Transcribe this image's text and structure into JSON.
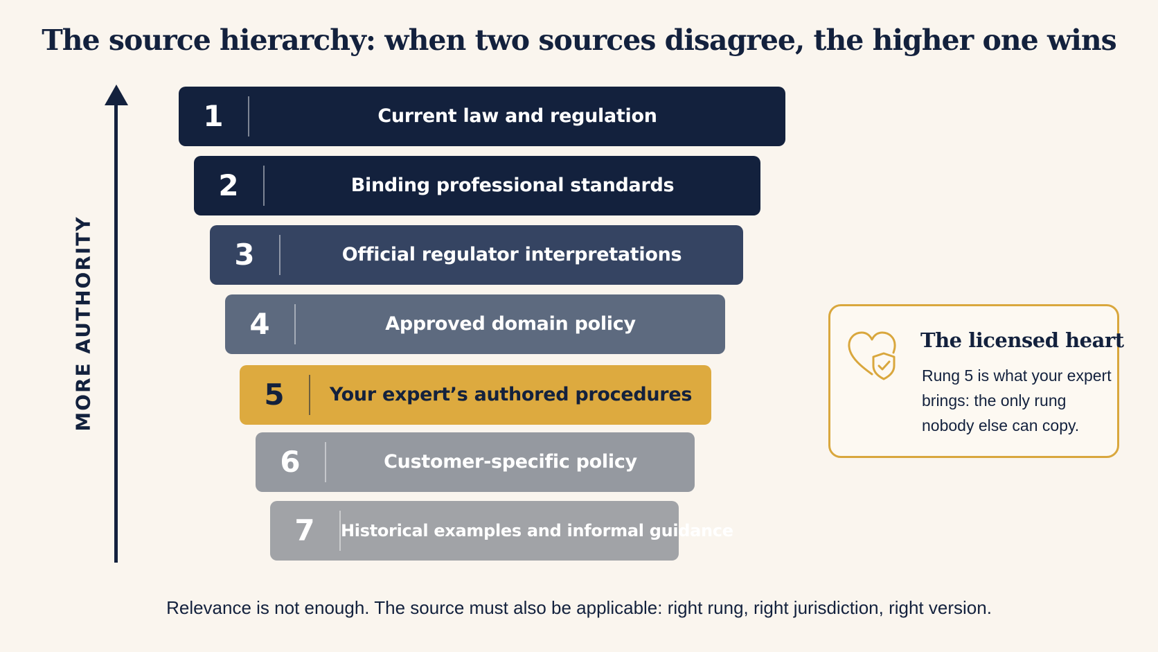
{
  "title": "The source hierarchy: when two sources disagree, the higher one wins",
  "axis": {
    "label": "MORE AUTHORITY"
  },
  "rungs": [
    {
      "number": "1",
      "label": "Current law and regulation"
    },
    {
      "number": "2",
      "label": "Binding professional standards"
    },
    {
      "number": "3",
      "label": "Official regulator interpretations"
    },
    {
      "number": "4",
      "label": "Approved domain policy"
    },
    {
      "number": "5",
      "label": "Your expert’s authored procedures"
    },
    {
      "number": "6",
      "label": "Customer-specific policy"
    },
    {
      "number": "7",
      "label": "Historical examples and informal guidance"
    }
  ],
  "callout": {
    "icon": "heart-shield-check-icon",
    "title": "The licensed heart",
    "body": "Rung 5 is what your expert brings: the only rung nobody else can copy."
  },
  "footnote": "Relevance is not enough. The source must also be applicable: right rung, right jurisdiction, right version.",
  "colors": {
    "background": "#faf5ee",
    "navy": "#13213d",
    "slate": "#354462",
    "steel": "#5d6a7f",
    "gold": "#ddaa3f",
    "gray": "#9599a0",
    "light_gray": "#a1a3a7"
  }
}
